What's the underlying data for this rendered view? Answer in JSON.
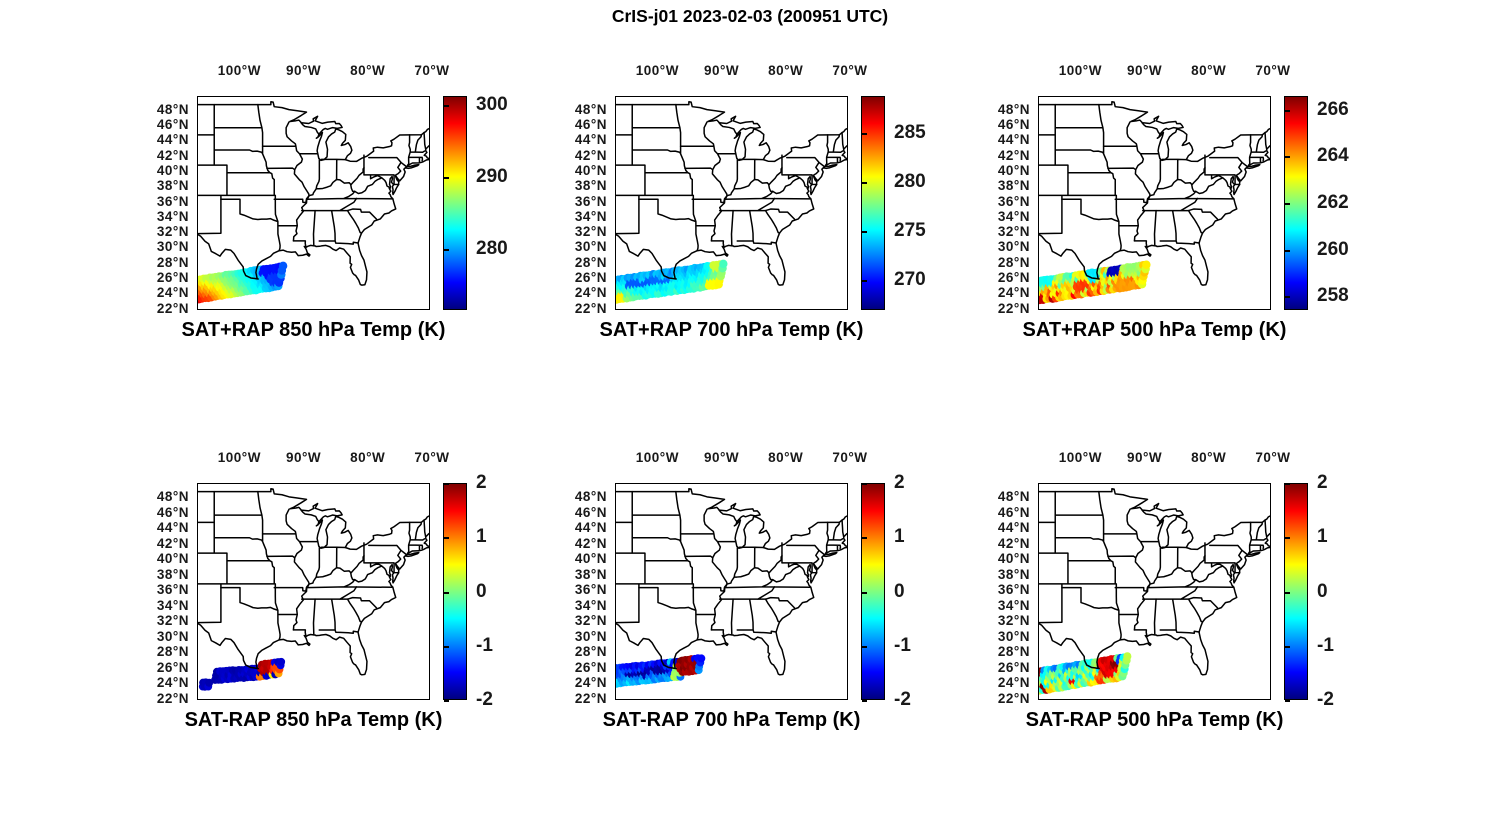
{
  "figure": {
    "title": "CrIS-j01 2023-02-03 (200951 UTC)"
  },
  "chart_data": {
    "type": "scatter",
    "description": "Six geographic scatter panels of CrIS satellite sounding footprints over the Gulf of Mexico on a US states basemap; top row shows retrieved temperature (SAT+RAP), bottom row shows differences (SAT-RAP), with jet colorbars.",
    "colormap": "jet",
    "jet_css_stops": [
      "#000080 0%",
      "#0000ff 12.5%",
      "#00ffff 37.5%",
      "#ffff00 62.5%",
      "#ff0000 87.5%",
      "#800000 100%"
    ],
    "axes": {
      "lon_range": [
        -106.6,
        -70.3
      ],
      "lat_range": [
        22,
        50
      ],
      "lon_ticks": [
        {
          "value": -100,
          "label": "100°W"
        },
        {
          "value": -90,
          "label": "90°W"
        },
        {
          "value": -80,
          "label": "80°W"
        },
        {
          "value": -70,
          "label": "70°W"
        }
      ],
      "lat_ticks": [
        {
          "value": 48,
          "label": "48°N"
        },
        {
          "value": 46,
          "label": "46°N"
        },
        {
          "value": 44,
          "label": "44°N"
        },
        {
          "value": 42,
          "label": "42°N"
        },
        {
          "value": 40,
          "label": "40°N"
        },
        {
          "value": 38,
          "label": "38°N"
        },
        {
          "value": 36,
          "label": "36°N"
        },
        {
          "value": 34,
          "label": "34°N"
        },
        {
          "value": 32,
          "label": "32°N"
        },
        {
          "value": 30,
          "label": "30°N"
        },
        {
          "value": 28,
          "label": "28°N"
        },
        {
          "value": 26,
          "label": "26°N"
        },
        {
          "value": 24,
          "label": "24°N"
        },
        {
          "value": 22,
          "label": "22°N"
        }
      ]
    },
    "panels": [
      {
        "id": "sat-plus-rap-850",
        "title": "SAT+RAP 850 hPa Temp (K)",
        "row": 0,
        "col": 0,
        "colorbar": {
          "min": 271.5,
          "max": 301.3,
          "ticks": [
            {
              "value": 300,
              "label": "300"
            },
            {
              "value": 290,
              "label": "290"
            },
            {
              "value": 280,
              "label": "280"
            }
          ]
        },
        "swath": {
          "rlon": 0.66,
          "rlat": 0.56,
          "seed": 11,
          "noise": 0.5,
          "bands": [
            {
              "lon0": -106.95,
              "lon1": -93.8,
              "clat0": 24.55,
              "clat1": 26.35,
              "rows": 6,
              "rstep": 0.53,
              "cstep": 0.5,
              "skew": 0.14
            }
          ],
          "value_stops": [
            [
              -107,
              294.5
            ],
            [
              -101.5,
              287.5
            ],
            [
              -97.5,
              282.2
            ],
            [
              -93.8,
              278.6
            ]
          ],
          "latcoef_stops": [
            [
              -107,
              3.4
            ],
            [
              -100,
              1.2
            ],
            [
              -93.8,
              0.6
            ]
          ],
          "clusters": [
            {
              "lon": -95.1,
              "lat": 27.1,
              "rlo": 1.5,
              "rla": 1.0,
              "v": 275.6
            },
            {
              "lon": -94.3,
              "lat": 25.9,
              "rlo": 0.9,
              "rla": 0.9,
              "v": 276.8
            }
          ]
        }
      },
      {
        "id": "sat-plus-rap-700",
        "title": "SAT+RAP 700 hPa Temp (K)",
        "row": 0,
        "col": 1,
        "colorbar": {
          "min": 266.9,
          "max": 288.8,
          "ticks": [
            {
              "value": 285,
              "label": "285"
            },
            {
              "value": 280,
              "label": "280"
            },
            {
              "value": 275,
              "label": "275"
            },
            {
              "value": 270,
              "label": "270"
            }
          ]
        },
        "swath": {
          "rlon": 0.66,
          "rlat": 0.56,
          "seed": 22,
          "noise": 0.75,
          "bands": [
            {
              "lon0": -106.95,
              "lon1": -90.3,
              "clat0": 24.55,
              "clat1": 26.6,
              "rows": 6,
              "rstep": 0.53,
              "cstep": 0.5,
              "skew": 0.14
            }
          ],
          "value_stops": [
            [
              -107,
              276.8
            ],
            [
              -103,
              274.8
            ],
            [
              -98,
              274.3
            ],
            [
              -93,
              275.2
            ],
            [
              -90.3,
              277.8
            ]
          ],
          "latcoef_stops": [
            [
              -107,
              2.3
            ],
            [
              -102,
              0.9
            ],
            [
              -90.3,
              1.0
            ]
          ],
          "clusters": [
            {
              "lon": -105.9,
              "lat": 23.6,
              "rlo": 0.9,
              "rla": 0.5,
              "v": 280.9
            },
            {
              "lon": -103.0,
              "lat": 25.3,
              "rlo": 2.3,
              "rla": 0.45,
              "v": 271.6
            },
            {
              "lon": -99.7,
              "lat": 25.8,
              "rlo": 1.9,
              "rla": 0.4,
              "v": 271.9
            },
            {
              "lon": -91.2,
              "lat": 25.3,
              "rlo": 1.1,
              "rla": 0.9,
              "v": 280.6
            },
            {
              "lon": -90.7,
              "lat": 27.6,
              "rlo": 0.8,
              "rla": 0.6,
              "v": 279.6
            }
          ]
        }
      },
      {
        "id": "sat-plus-rap-500",
        "title": "SAT+RAP 500 hPa Temp (K)",
        "row": 0,
        "col": 2,
        "colorbar": {
          "min": 257.4,
          "max": 266.6,
          "ticks": [
            {
              "value": 266,
              "label": "266"
            },
            {
              "value": 264,
              "label": "264"
            },
            {
              "value": 262,
              "label": "262"
            },
            {
              "value": 260,
              "label": "260"
            },
            {
              "value": 258,
              "label": "258"
            }
          ]
        },
        "swath": {
          "rlon": 0.66,
          "rlat": 0.56,
          "seed": 33,
          "noise": 1.5,
          "bands": [
            {
              "lon0": -106.95,
              "lon1": -90.3,
              "clat0": 24.4,
              "clat1": 26.55,
              "rows": 6,
              "rstep": 0.52,
              "cstep": 0.5,
              "skew": 0.14
            }
          ],
          "value_stops": [
            [
              -107,
              262.8
            ],
            [
              -98,
              263.2
            ],
            [
              -90.3,
              263.4
            ]
          ],
          "latcoef_stops": [
            [
              -107,
              1.6
            ],
            [
              -100,
              0.6
            ],
            [
              -90.3,
              0.3
            ]
          ],
          "clusters": [
            {
              "lon": -106.4,
              "lat": 23.6,
              "rlo": 0.7,
              "rla": 0.5,
              "v": 265.9
            },
            {
              "lon": -105.6,
              "lat": 25.9,
              "rlo": 1.5,
              "rla": 0.9,
              "v": 261.0
            },
            {
              "lon": -99.7,
              "lat": 25.2,
              "rlo": 1.1,
              "rla": 0.8,
              "v": 264.9
            },
            {
              "lon": -97.9,
              "lat": 26.4,
              "rlo": 1.0,
              "rla": 0.65,
              "v": 260.7
            },
            {
              "lon": -94.6,
              "lat": 27.0,
              "rlo": 1.0,
              "rla": 0.8,
              "v": 257.9
            },
            {
              "lon": -92.6,
              "lat": 25.2,
              "rlo": 1.7,
              "rla": 1.0,
              "v": 264.1
            },
            {
              "lon": -91.7,
              "lat": 27.3,
              "rlo": 1.1,
              "rla": 0.55,
              "v": 262.2
            }
          ]
        }
      },
      {
        "id": "sat-minus-rap-850",
        "title": "SAT-RAP 850 hPa Temp (K)",
        "row": 1,
        "col": 0,
        "colorbar": {
          "min": -2,
          "max": 2,
          "ticks": [
            {
              "value": 2,
              "label": "2"
            },
            {
              "value": 1,
              "label": "1"
            },
            {
              "value": 0,
              "label": "0"
            },
            {
              "value": -1,
              "label": "-1"
            },
            {
              "value": -2,
              "label": "-2"
            }
          ]
        },
        "swath": {
          "rlon": 0.62,
          "rlat": 0.52,
          "seed": 44,
          "noise": 0.12,
          "bands": [
            {
              "lon0": -105.9,
              "lon1": -105.1,
              "clat0": 23.85,
              "clat1": 23.9,
              "rows": 2,
              "rstep": 0.5,
              "cstep": 0.45,
              "skew": 0.1
            },
            {
              "lon0": -103.9,
              "lon1": -96.6,
              "clat0": 25.0,
              "clat1": 25.5,
              "rows": 3,
              "rstep": 0.52,
              "cstep": 0.5,
              "skew": 0.12
            },
            {
              "lon0": -96.9,
              "lon1": -93.9,
              "clat0": 25.7,
              "clat1": 26.1,
              "rows": 4,
              "rstep": 0.52,
              "cstep": 0.5,
              "skew": 0.12
            }
          ],
          "value_stops": [
            [
              -107,
              -1.78
            ],
            [
              -93,
              -1.7
            ]
          ],
          "latcoef_stops": [
            [
              -107,
              0
            ],
            [
              -93,
              0
            ]
          ],
          "clusters": [
            {
              "lon": -98.0,
              "lat": 26.4,
              "rlo": 0.5,
              "rla": 0.4,
              "v": -0.55
            },
            {
              "lon": -95.9,
              "lat": 26.3,
              "rlo": 1.2,
              "rla": 1.0,
              "v": 1.75
            },
            {
              "lon": -94.4,
              "lat": 25.9,
              "rlo": 0.7,
              "rla": 0.6,
              "v": 1.3
            },
            {
              "lon": -96.6,
              "lat": 25.0,
              "rlo": 0.5,
              "rla": 0.4,
              "v": 1.1
            },
            {
              "lon": -95.0,
              "lat": 24.95,
              "rlo": 0.5,
              "rla": 0.4,
              "v": 0.6
            },
            {
              "lon": -93.95,
              "lat": 25.45,
              "rlo": 0.45,
              "rla": 0.35,
              "v": 0.8
            }
          ]
        }
      },
      {
        "id": "sat-minus-rap-700",
        "title": "SAT-RAP 700 hPa Temp (K)",
        "row": 1,
        "col": 1,
        "colorbar": {
          "min": -2,
          "max": 2,
          "ticks": [
            {
              "value": 2,
              "label": "2"
            },
            {
              "value": 1,
              "label": "1"
            },
            {
              "value": 0,
              "label": "0"
            },
            {
              "value": -1,
              "label": "-1"
            },
            {
              "value": -2,
              "label": "-2"
            }
          ]
        },
        "swath": {
          "rlon": 0.62,
          "rlat": 0.52,
          "seed": 55,
          "noise": 0.18,
          "bands": [
            {
              "lon0": -106.95,
              "lon1": -96.7,
              "clat0": 25.0,
              "clat1": 25.9,
              "rows": 5,
              "rstep": 0.5,
              "cstep": 0.5,
              "skew": 0.12
            },
            {
              "lon0": -96.6,
              "lon1": -93.8,
              "clat0": 26.2,
              "clat1": 26.5,
              "rows": 4,
              "rstep": 0.52,
              "cstep": 0.5,
              "skew": 0.12
            }
          ],
          "value_stops": [
            [
              -107,
              -1.05
            ],
            [
              -97,
              -1.25
            ],
            [
              -93.8,
              -1.2
            ]
          ],
          "latcoef_stops": [
            [
              -107,
              0.35
            ],
            [
              -93.8,
              0.3
            ]
          ],
          "clusters": [
            {
              "lon": -106.3,
              "lat": 24.0,
              "rlo": 0.8,
              "rla": 0.5,
              "v": -0.7
            },
            {
              "lon": -102.7,
              "lat": 25.3,
              "rlo": 2.4,
              "rla": 0.4,
              "v": -1.85
            },
            {
              "lon": -99.9,
              "lat": 25.9,
              "rlo": 1.9,
              "rla": 0.35,
              "v": -1.8
            },
            {
              "lon": -97.9,
              "lat": 27.05,
              "rlo": 0.45,
              "rla": 0.35,
              "v": -0.6
            },
            {
              "lon": -97.1,
              "lat": 25.3,
              "rlo": 0.6,
              "rla": 1.3,
              "v": 0.15
            },
            {
              "lon": -95.2,
              "lat": 26.3,
              "rlo": 1.5,
              "rla": 1.4,
              "v": 1.88
            },
            {
              "lon": -93.95,
              "lat": 27.45,
              "rlo": 0.5,
              "rla": 0.4,
              "v": -1.45
            }
          ]
        }
      },
      {
        "id": "sat-minus-rap-500",
        "title": "SAT-RAP 500 hPa Temp (K)",
        "row": 1,
        "col": 2,
        "colorbar": {
          "min": -2,
          "max": 2,
          "ticks": [
            {
              "value": 2,
              "label": "2"
            },
            {
              "value": 1,
              "label": "1"
            },
            {
              "value": 0,
              "label": "0"
            },
            {
              "value": -1,
              "label": "-1"
            },
            {
              "value": -2,
              "label": "-2"
            }
          ]
        },
        "swath": {
          "rlon": 0.64,
          "rlat": 0.54,
          "seed": 66,
          "noise": 0.55,
          "bands": [
            {
              "lon0": -106.95,
              "lon1": -93.5,
              "clat0": 24.3,
              "clat1": 26.2,
              "rows": 6,
              "rstep": 0.52,
              "cstep": 0.5,
              "skew": 0.14
            }
          ],
          "value_stops": [
            [
              -107,
              -0.2
            ],
            [
              -100,
              -0.15
            ],
            [
              -93.5,
              0.1
            ]
          ],
          "latcoef_stops": [
            [
              -107,
              0.3
            ],
            [
              -93.5,
              0.2
            ]
          ],
          "clusters": [
            {
              "lon": -106.35,
              "lat": 23.55,
              "rlo": 0.55,
              "rla": 0.45,
              "v": 1.9
            },
            {
              "lon": -105.5,
              "lat": 23.35,
              "rlo": 0.45,
              "rla": 0.35,
              "v": 1.85
            },
            {
              "lon": -106.55,
              "lat": 25.35,
              "rlo": 0.4,
              "rla": 0.35,
              "v": 1.9
            },
            {
              "lon": -100.9,
              "lat": 24.35,
              "rlo": 0.5,
              "rla": 0.4,
              "v": 1.5
            },
            {
              "lon": -96.7,
              "lat": 24.9,
              "rlo": 0.8,
              "rla": 0.55,
              "v": 1.2
            },
            {
              "lon": -95.4,
              "lat": 26.3,
              "rlo": 1.6,
              "rla": 1.25,
              "v": 1.6
            },
            {
              "lon": -94.55,
              "lat": 26.6,
              "rlo": 0.7,
              "rla": 0.55,
              "v": 1.95
            },
            {
              "lon": -93.85,
              "lat": 27.15,
              "rlo": 0.45,
              "rla": 0.4,
              "v": -1.35
            }
          ]
        }
      }
    ]
  }
}
